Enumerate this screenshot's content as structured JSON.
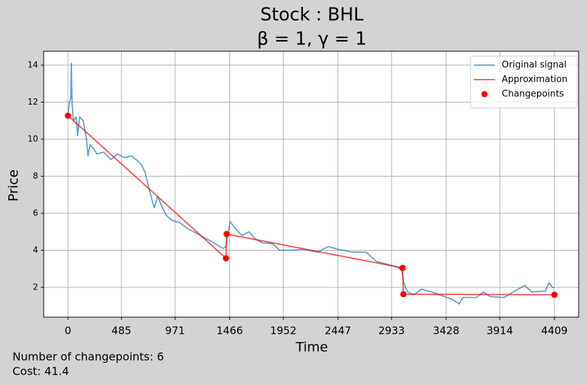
{
  "chart_data": {
    "type": "line",
    "title": "Stock : BHL",
    "subtitle": "β = 1, γ = 1",
    "x_label": "Time",
    "y_label": "Price",
    "annotations": [
      "Number of changepoints: 6",
      "Cost: 41.4"
    ],
    "xlim": [
      -220,
      4629
    ],
    "ylim": [
      0.39,
      14.75
    ],
    "xticks": [
      0,
      485,
      971,
      1466,
      1952,
      2447,
      2933,
      3428,
      3914,
      4409
    ],
    "yticks": [
      2,
      4,
      6,
      8,
      10,
      12,
      14
    ],
    "grid": true,
    "legend": "upper right",
    "series": [
      {
        "name": "Original signal",
        "color": "#1f77b4",
        "mode": "line",
        "x": [
          0,
          13,
          25,
          31,
          38,
          50,
          75,
          88,
          106,
          138,
          169,
          181,
          200,
          231,
          263,
          325,
          388,
          450,
          513,
          575,
          638,
          669,
          700,
          732,
          763,
          782,
          813,
          857,
          888,
          951,
          1013,
          1076,
          1138,
          1201,
          1263,
          1326,
          1376,
          1407,
          1432,
          1470,
          1513,
          1576,
          1639,
          1701,
          1764,
          1857,
          1920,
          2014,
          2139,
          2264,
          2358,
          2452,
          2577,
          2702,
          2796,
          2889,
          2983,
          3027,
          3046,
          3077,
          3140,
          3202,
          3296,
          3390,
          3483,
          3546,
          3577,
          3702,
          3765,
          3828,
          3953,
          4078,
          4140,
          4203,
          4328,
          4359,
          4390,
          4409
        ],
        "values": [
          11.3,
          12.0,
          12.2,
          14.1,
          11.9,
          11.0,
          11.2,
          10.2,
          11.2,
          11.0,
          10.0,
          9.1,
          9.7,
          9.5,
          9.2,
          9.3,
          8.9,
          9.2,
          9.0,
          9.1,
          8.8,
          8.6,
          8.2,
          7.4,
          6.7,
          6.3,
          6.9,
          6.3,
          5.9,
          5.6,
          5.5,
          5.2,
          5.0,
          4.8,
          4.6,
          4.4,
          4.2,
          4.1,
          4.2,
          5.55,
          5.2,
          4.8,
          5.0,
          4.6,
          4.4,
          4.35,
          4.0,
          4.0,
          4.05,
          3.9,
          4.2,
          4.05,
          3.9,
          3.9,
          3.4,
          3.25,
          3.1,
          2.9,
          2.2,
          1.75,
          1.6,
          1.9,
          1.75,
          1.55,
          1.35,
          1.1,
          1.45,
          1.45,
          1.75,
          1.5,
          1.45,
          1.9,
          2.1,
          1.75,
          1.8,
          2.25,
          2.0,
          2.0
        ]
      },
      {
        "name": "Approximation",
        "color": "#ff0000",
        "mode": "line",
        "x": [
          0,
          1432,
          1438,
          3033,
          3040,
          4409
        ],
        "values": [
          11.27,
          3.57,
          4.88,
          3.05,
          1.63,
          1.6
        ]
      },
      {
        "name": "Changepoints",
        "color": "#ff0000",
        "mode": "markers",
        "x": [
          0,
          1432,
          1438,
          3033,
          3040,
          4409
        ],
        "values": [
          11.27,
          3.57,
          4.88,
          3.05,
          1.63,
          1.6
        ]
      }
    ]
  }
}
